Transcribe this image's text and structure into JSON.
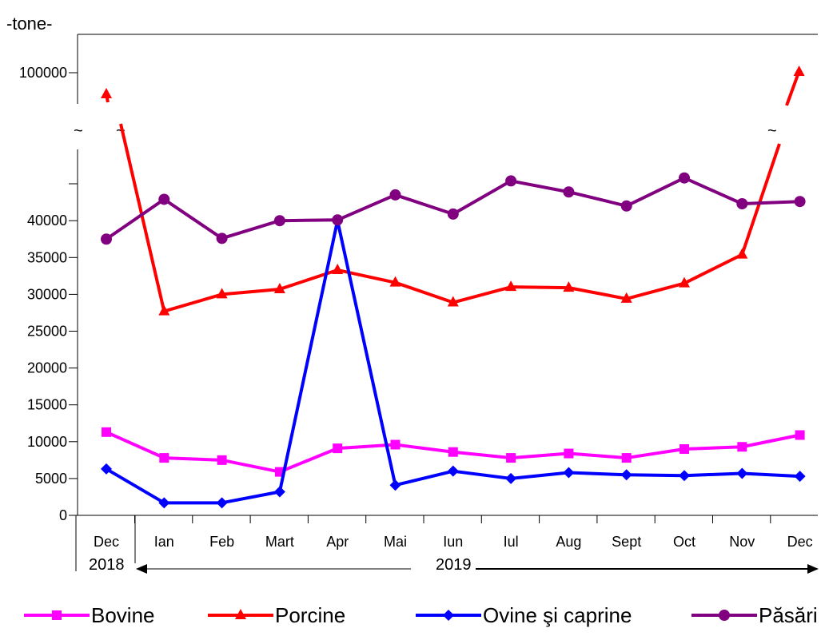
{
  "chart_data": {
    "type": "line",
    "unit_label": "-tone-",
    "categories": [
      "Dec",
      "Ian",
      "Feb",
      "Mart",
      "Apr",
      "Mai",
      "Iun",
      "Iul",
      "Aug",
      "Sept",
      "Oct",
      "Nov",
      "Dec"
    ],
    "year_labels": [
      "2018",
      "2019"
    ],
    "y_axis": {
      "ticks": [
        0,
        5000,
        10000,
        15000,
        20000,
        25000,
        30000,
        35000,
        40000
      ],
      "tick_labels": [
        "0",
        "5000",
        "10000",
        "15000",
        "20000",
        "25000",
        "30000",
        "35000",
        "40000"
      ],
      "ylim": [
        0,
        45000
      ],
      "break_after": 45000,
      "upper_segment_tick": 100000,
      "upper_segment_tick_label": "100000"
    },
    "series": [
      {
        "name": "Bovine",
        "color": "#ff00ff",
        "marker": "square",
        "values": [
          11300,
          7800,
          7500,
          5900,
          9100,
          9600,
          8600,
          7800,
          8400,
          7800,
          9000,
          9300,
          10900
        ]
      },
      {
        "name": "Porcine",
        "color": "#ff0000",
        "marker": "triangle",
        "values": [
          null,
          27700,
          30000,
          30700,
          33300,
          31600,
          28900,
          31000,
          30900,
          29400,
          31500,
          35400,
          null
        ],
        "off_scale": [
          "first",
          "last"
        ]
      },
      {
        "name": "Ovine şi caprine",
        "color": "#0000ff",
        "marker": "diamond",
        "values": [
          6300,
          1700,
          1700,
          3200,
          40000,
          4100,
          6000,
          5000,
          5800,
          5500,
          5400,
          5700,
          5300
        ]
      },
      {
        "name": "Păsări",
        "color": "#800080",
        "marker": "circle",
        "values": [
          37500,
          42900,
          37600,
          40000,
          40100,
          43500,
          40900,
          45400,
          43900,
          42000,
          45800,
          42300,
          42600
        ]
      }
    ],
    "grid": false,
    "legend_position": "bottom"
  }
}
